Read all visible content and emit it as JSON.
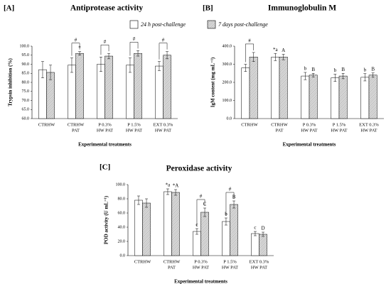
{
  "legend_series_chart": 0,
  "chart_data": [
    {
      "type": "bar",
      "panel": "[A]",
      "title": "Antiprotease activity",
      "ylabel": "Trypsin inhibition (%)",
      "xlabel": "Experimental treatments",
      "categories": [
        [
          "CTRHW"
        ],
        [
          "CTRHW",
          "PAT"
        ],
        [
          "P 0.3%",
          "HW PAT"
        ],
        [
          "P 1.5%",
          "HW PAT"
        ],
        [
          "EXT 0.3%",
          "HW PAT"
        ]
      ],
      "series": [
        {
          "name": "24 h post-challenge",
          "color": "#ffffff",
          "values": [
            87,
            89.5,
            90,
            89.5,
            89
          ],
          "errors": [
            4.5,
            4,
            4,
            4,
            2.5
          ],
          "letters": [
            null,
            null,
            null,
            null,
            null
          ]
        },
        {
          "name": "7 days post-challenge",
          "color": "#d9d9d9",
          "pattern": "hatch",
          "values": [
            85.5,
            96,
            94.5,
            96,
            95
          ],
          "errors": [
            4,
            1,
            1.5,
            1.5,
            2
          ],
          "letters": [
            null,
            "*",
            null,
            null,
            null
          ]
        }
      ],
      "brackets": [
        null,
        "#",
        "#",
        "#",
        "#"
      ],
      "ylim": [
        60,
        100
      ],
      "yticks": [
        {
          "value": 60,
          "label": "60.0"
        },
        {
          "value": 65,
          "label": "65.0"
        },
        {
          "value": 70,
          "label": "70.0"
        },
        {
          "value": 75,
          "label": "75.0"
        },
        {
          "value": 80,
          "label": "80.0"
        },
        {
          "value": 85,
          "label": "85.0"
        },
        {
          "value": 90,
          "label": "90.0"
        },
        {
          "value": 95,
          "label": "95.0"
        },
        {
          "value": 100,
          "label": "100.0"
        }
      ]
    },
    {
      "type": "bar",
      "panel": "[B]",
      "title": "Immunoglobulin M",
      "ylabel": "IgM content (mg mL⁻¹)",
      "xlabel": "Experimental treatments",
      "categories": [
        [
          "CTRHW"
        ],
        [
          "CTRHW",
          "PAT"
        ],
        [
          "P 0.3%",
          "HW PAT"
        ],
        [
          "P 1.5%",
          "HW PAT"
        ],
        [
          "EXT 0.3%",
          "HW PAT"
        ]
      ],
      "series": [
        {
          "color": "#ffffff",
          "values": [
            280,
            340,
            235,
            225,
            228
          ],
          "errors": [
            20,
            20,
            20,
            20,
            20
          ],
          "letters": [
            null,
            "*a",
            "b",
            "b",
            "b"
          ]
        },
        {
          "color": "#d9d9d9",
          "pattern": "hatch",
          "values": [
            340,
            340,
            240,
            235,
            240
          ],
          "errors": [
            25,
            15,
            10,
            15,
            12
          ],
          "letters": [
            null,
            "A",
            "B",
            "B",
            "B"
          ]
        }
      ],
      "brackets": [
        "#",
        null,
        null,
        null,
        null
      ],
      "ylim": [
        0,
        400
      ],
      "yticks": [
        {
          "value": 0,
          "label": "0.0"
        },
        {
          "value": 100,
          "label": "100.0"
        },
        {
          "value": 200,
          "label": "200.0"
        },
        {
          "value": 300,
          "label": "300.0"
        },
        {
          "value": 400,
          "label": "400.0"
        }
      ]
    },
    {
      "type": "bar",
      "panel": "[C]",
      "title": "Peroxidase activity",
      "ylabel": "POD activity (U mL⁻¹)",
      "xlabel": "Experimental treatments",
      "categories": [
        [
          "CTRHW"
        ],
        [
          "CTRHW",
          "PAT"
        ],
        [
          "P 0.3%",
          "HW PAT"
        ],
        [
          "P 1.5%",
          "HW PAT"
        ],
        [
          "EXT 0.3%",
          "HW PAT"
        ]
      ],
      "series": [
        {
          "color": "#ffffff",
          "values": [
            78,
            90,
            34,
            48,
            31
          ],
          "errors": [
            6,
            4,
            4,
            5,
            3
          ],
          "letters": [
            null,
            "*a",
            "c",
            "b",
            "c"
          ]
        },
        {
          "color": "#d9d9d9",
          "pattern": "hatch",
          "values": [
            74,
            89,
            61,
            72,
            30
          ],
          "errors": [
            6,
            4,
            6,
            5,
            3
          ],
          "letters": [
            null,
            "*A",
            "C",
            "B",
            "D"
          ]
        }
      ],
      "brackets": [
        null,
        null,
        "#",
        "#",
        null
      ],
      "ylim": [
        0,
        100
      ],
      "yticks": [
        {
          "value": 0,
          "label": "0.0"
        },
        {
          "value": 20,
          "label": "20.0"
        },
        {
          "value": 40,
          "label": "40.0"
        },
        {
          "value": 60,
          "label": "60.0"
        },
        {
          "value": 80,
          "label": "80.0"
        },
        {
          "value": 100,
          "label": "100.0"
        }
      ]
    }
  ]
}
